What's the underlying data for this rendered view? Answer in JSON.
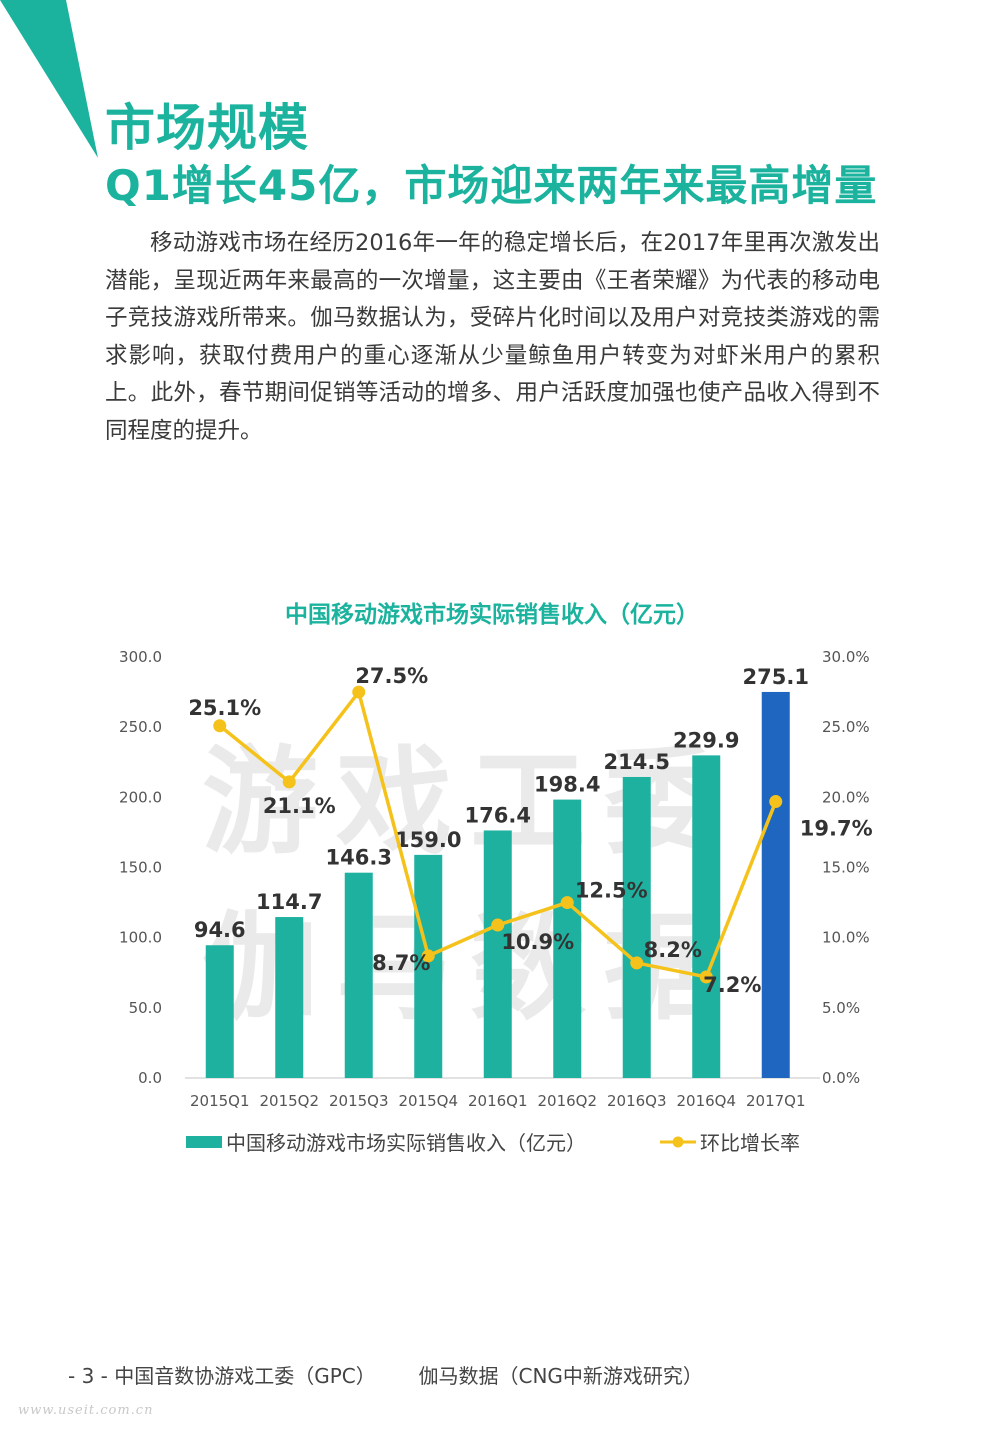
{
  "colors": {
    "accent": "#1cb39e",
    "bar": "#1fb1a0",
    "bar_highlight": "#1f66c0",
    "line": "#f5c21b"
  },
  "header": {
    "title": "市场规模",
    "subtitle": "Q1增长45亿，市场迎来两年来最高增量"
  },
  "body": {
    "paragraph": "移动游戏市场在经历2016年一年的稳定增长后，在2017年里再次激发出潜能，呈现近两年来最高的一次增量，这主要由《王者荣耀》为代表的移动电子竞技游戏所带来。伽马数据认为，受碎片化时间以及用户对竞技类游戏的需求影响，获取付费用户的重心逐渐从少量鲸鱼用户转变为对虾米用户的累积上。此外，春节期间促销等活动的增多、用户活跃度加强也使产品收入得到不同程度的提升。"
  },
  "chart_data": {
    "type": "bar",
    "title": "中国移动游戏市场实际销售收入（亿元）",
    "categories": [
      "2015Q1",
      "2015Q2",
      "2015Q3",
      "2015Q4",
      "2016Q1",
      "2016Q2",
      "2016Q3",
      "2016Q4",
      "2017Q1"
    ],
    "series": [
      {
        "name": "中国移动游戏市场实际销售收入（亿元）",
        "type": "bar",
        "axis": "left",
        "values": [
          94.6,
          114.7,
          146.3,
          159.0,
          176.4,
          198.4,
          214.5,
          229.9,
          275.1
        ],
        "labels": [
          "94.6",
          "114.7",
          "146.3",
          "159.0",
          "176.4",
          "198.4",
          "214.5",
          "229.9",
          "275.1"
        ]
      },
      {
        "name": "环比增长率",
        "type": "line",
        "axis": "right",
        "values": [
          25.1,
          21.1,
          27.5,
          8.7,
          10.9,
          12.5,
          8.2,
          7.2,
          19.7
        ],
        "labels": [
          "25.1%",
          "21.1%",
          "27.5%",
          "8.7%",
          "10.9%",
          "12.5%",
          "8.2%",
          "7.2%",
          "19.7%"
        ]
      }
    ],
    "y_left": {
      "min": 0,
      "max": 300,
      "ticks": [
        "0.0",
        "50.0",
        "100.0",
        "150.0",
        "200.0",
        "250.0",
        "300.0"
      ]
    },
    "y_right": {
      "min": 0,
      "max": 30,
      "ticks": [
        "0.0%",
        "5.0%",
        "10.0%",
        "15.0%",
        "20.0%",
        "25.0%",
        "30.0%"
      ]
    },
    "highlight_index": 8,
    "legend_position": "bottom",
    "grid": false,
    "watermark": [
      "游戏工委",
      "伽马数据"
    ]
  },
  "footer": {
    "page": "- 3 -",
    "org1": "中国音数协游戏工委（GPC）",
    "org2": "伽马数据（CNG中新游戏研究）",
    "site": "www.useit.com.cn"
  }
}
